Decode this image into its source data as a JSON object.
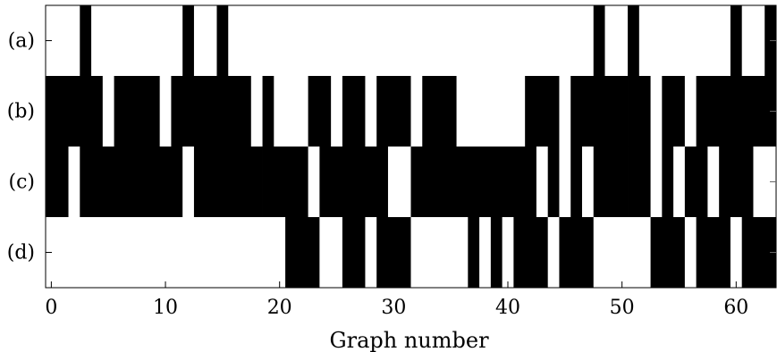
{
  "chart_data": {
    "type": "heatmap",
    "title": "",
    "xlabel": "Graph number",
    "ylabel": "",
    "xlim": [
      -0.5,
      63.5
    ],
    "x_ticks": [
      0,
      10,
      20,
      30,
      40,
      50,
      60
    ],
    "rows": [
      "(a)",
      "(b)",
      "(c)",
      "(d)"
    ],
    "colors": {
      "on": "#000000",
      "off": "#ffffff"
    },
    "values": {
      "(a)": [
        0,
        0,
        0,
        1,
        0,
        0,
        0,
        0,
        0,
        0,
        0,
        0,
        1,
        0,
        0,
        1,
        0,
        0,
        0,
        0,
        0,
        0,
        0,
        0,
        0,
        0,
        0,
        0,
        0,
        0,
        0,
        0,
        0,
        0,
        0,
        0,
        0,
        0,
        0,
        0,
        0,
        0,
        0,
        0,
        0,
        0,
        0,
        0,
        1,
        0,
        0,
        1,
        0,
        0,
        0,
        0,
        0,
        0,
        0,
        0,
        1,
        0,
        0,
        1
      ],
      "(b)": [
        1,
        1,
        1,
        1,
        1,
        0,
        1,
        1,
        1,
        1,
        0,
        1,
        1,
        1,
        1,
        1,
        1,
        1,
        0,
        1,
        0,
        0,
        0,
        1,
        1,
        0,
        1,
        1,
        0,
        1,
        1,
        1,
        0,
        1,
        1,
        1,
        0,
        0,
        0,
        0,
        0,
        0,
        1,
        1,
        1,
        0,
        1,
        1,
        1,
        1,
        1,
        1,
        1,
        0,
        1,
        1,
        0,
        1,
        1,
        1,
        1,
        1,
        1,
        1
      ],
      "(c)": [
        1,
        1,
        0,
        1,
        1,
        1,
        1,
        1,
        1,
        1,
        1,
        1,
        0,
        1,
        1,
        1,
        1,
        1,
        1,
        1,
        1,
        1,
        1,
        0,
        1,
        1,
        1,
        1,
        1,
        1,
        0,
        0,
        1,
        1,
        1,
        1,
        1,
        1,
        1,
        1,
        1,
        1,
        1,
        0,
        1,
        0,
        1,
        0,
        1,
        1,
        1,
        1,
        1,
        0,
        1,
        0,
        1,
        1,
        0,
        1,
        1,
        1,
        0,
        0
      ],
      "(d)": [
        0,
        0,
        0,
        0,
        0,
        0,
        0,
        0,
        0,
        0,
        0,
        0,
        0,
        0,
        0,
        0,
        0,
        0,
        0,
        0,
        0,
        1,
        1,
        1,
        0,
        0,
        1,
        1,
        0,
        1,
        1,
        1,
        0,
        0,
        0,
        0,
        0,
        1,
        0,
        1,
        0,
        1,
        1,
        1,
        0,
        1,
        1,
        1,
        0,
        0,
        0,
        0,
        0,
        1,
        1,
        1,
        0,
        1,
        1,
        1,
        0,
        1,
        1,
        1
      ]
    }
  }
}
